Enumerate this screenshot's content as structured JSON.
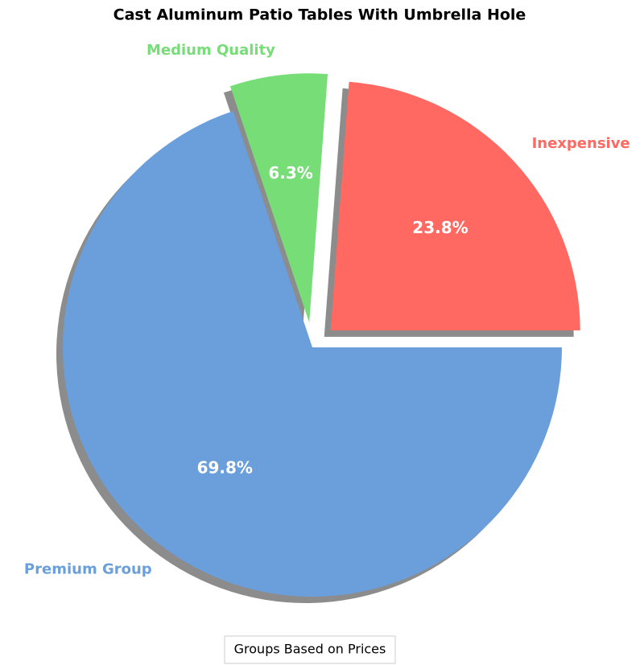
{
  "chart_data": {
    "type": "pie",
    "title": "Cast Aluminum Patio Tables With Umbrella Hole",
    "categories": [
      "Inexpensive",
      "Medium Quality",
      "Premium Group"
    ],
    "values": [
      23.8,
      6.3,
      69.8
    ],
    "value_labels": [
      "23.8%",
      "6.3%",
      "69.8%"
    ],
    "colors": [
      "#ff6961",
      "#77dd77",
      "#6a9fdb"
    ],
    "explode": [
      0.1,
      0.1,
      0
    ],
    "start_angle": 0,
    "counterclockwise": true,
    "shadow": true,
    "legend_title": "Groups Based on Prices",
    "legend_position": "bottom"
  }
}
